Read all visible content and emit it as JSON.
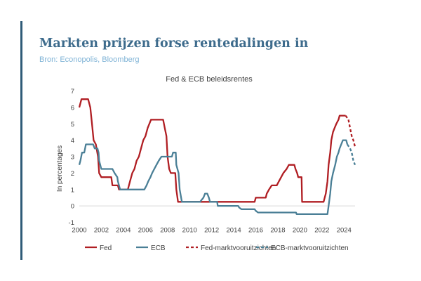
{
  "header": {
    "title": "Markten prijzen forse rentedalingen in",
    "source": "Bron: Econopolis, Bloomberg"
  },
  "colors": {
    "accent_bar": "#2f5b78",
    "title": "#3d6b8c",
    "source": "#7fb3d6",
    "fed": "#b01e23",
    "ecb": "#4a7f96"
  },
  "chart_data": {
    "type": "line",
    "title": "Fed & ECB beleidsrentes",
    "ylabel": "In percentages",
    "xlabel": "",
    "xlim": [
      2000,
      2025
    ],
    "ylim": [
      -1,
      7
    ],
    "xticks": [
      2000,
      2002,
      2004,
      2006,
      2008,
      2010,
      2012,
      2014,
      2016,
      2018,
      2020,
      2022,
      2024
    ],
    "yticks": [
      -1,
      0,
      1,
      2,
      3,
      4,
      5,
      6,
      7
    ],
    "grid": false,
    "legend_position": "bottom",
    "series": [
      {
        "name": "Fed",
        "style": "solid",
        "color": "#b01e23",
        "points": [
          [
            2000.0,
            6.0
          ],
          [
            2000.2,
            6.5
          ],
          [
            2000.8,
            6.5
          ],
          [
            2001.0,
            6.0
          ],
          [
            2001.15,
            5.0
          ],
          [
            2001.3,
            4.0
          ],
          [
            2001.5,
            3.75
          ],
          [
            2001.7,
            3.0
          ],
          [
            2001.8,
            2.0
          ],
          [
            2002.0,
            1.75
          ],
          [
            2002.9,
            1.75
          ],
          [
            2003.0,
            1.25
          ],
          [
            2003.5,
            1.25
          ],
          [
            2003.6,
            1.0
          ],
          [
            2004.4,
            1.0
          ],
          [
            2004.6,
            1.5
          ],
          [
            2004.8,
            2.0
          ],
          [
            2005.0,
            2.25
          ],
          [
            2005.2,
            2.75
          ],
          [
            2005.4,
            3.0
          ],
          [
            2005.6,
            3.5
          ],
          [
            2005.8,
            4.0
          ],
          [
            2006.0,
            4.25
          ],
          [
            2006.2,
            4.75
          ],
          [
            2006.5,
            5.25
          ],
          [
            2007.6,
            5.25
          ],
          [
            2007.75,
            4.75
          ],
          [
            2007.9,
            4.25
          ],
          [
            2008.0,
            3.0
          ],
          [
            2008.15,
            2.25
          ],
          [
            2008.3,
            2.0
          ],
          [
            2008.7,
            2.0
          ],
          [
            2008.8,
            1.0
          ],
          [
            2008.95,
            0.25
          ],
          [
            2015.9,
            0.25
          ],
          [
            2016.0,
            0.5
          ],
          [
            2016.9,
            0.5
          ],
          [
            2017.0,
            0.75
          ],
          [
            2017.2,
            1.0
          ],
          [
            2017.45,
            1.25
          ],
          [
            2017.9,
            1.25
          ],
          [
            2018.1,
            1.5
          ],
          [
            2018.3,
            1.75
          ],
          [
            2018.5,
            2.0
          ],
          [
            2018.8,
            2.25
          ],
          [
            2019.0,
            2.5
          ],
          [
            2019.5,
            2.5
          ],
          [
            2019.6,
            2.25
          ],
          [
            2019.75,
            2.0
          ],
          [
            2019.85,
            1.75
          ],
          [
            2020.15,
            1.75
          ],
          [
            2020.2,
            0.25
          ],
          [
            2022.15,
            0.25
          ],
          [
            2022.35,
            0.75
          ],
          [
            2022.5,
            1.5
          ],
          [
            2022.6,
            2.5
          ],
          [
            2022.75,
            3.25
          ],
          [
            2022.85,
            4.0
          ],
          [
            2023.0,
            4.5
          ],
          [
            2023.15,
            4.75
          ],
          [
            2023.3,
            5.0
          ],
          [
            2023.5,
            5.25
          ],
          [
            2023.6,
            5.5
          ],
          [
            2024.15,
            5.5
          ]
        ]
      },
      {
        "name": "ECB",
        "style": "solid",
        "color": "#4a7f96",
        "points": [
          [
            2000.0,
            2.5
          ],
          [
            2000.1,
            2.75
          ],
          [
            2000.25,
            3.25
          ],
          [
            2000.45,
            3.25
          ],
          [
            2000.6,
            3.75
          ],
          [
            2001.25,
            3.75
          ],
          [
            2001.4,
            3.5
          ],
          [
            2001.65,
            3.5
          ],
          [
            2001.75,
            3.25
          ],
          [
            2001.8,
            2.75
          ],
          [
            2002.0,
            2.25
          ],
          [
            2003.0,
            2.25
          ],
          [
            2003.2,
            2.0
          ],
          [
            2003.45,
            1.75
          ],
          [
            2003.5,
            1.5
          ],
          [
            2003.6,
            1.25
          ],
          [
            2003.7,
            1.0
          ],
          [
            2005.9,
            1.0
          ],
          [
            2006.1,
            1.25
          ],
          [
            2006.25,
            1.5
          ],
          [
            2006.45,
            1.75
          ],
          [
            2006.6,
            2.0
          ],
          [
            2006.8,
            2.25
          ],
          [
            2007.0,
            2.5
          ],
          [
            2007.2,
            2.75
          ],
          [
            2007.45,
            3.0
          ],
          [
            2008.4,
            3.0
          ],
          [
            2008.5,
            3.25
          ],
          [
            2008.75,
            3.25
          ],
          [
            2008.8,
            2.5
          ],
          [
            2009.0,
            2.0
          ],
          [
            2009.1,
            1.0
          ],
          [
            2009.3,
            0.25
          ],
          [
            2010.95,
            0.25
          ],
          [
            2011.25,
            0.5
          ],
          [
            2011.4,
            0.75
          ],
          [
            2011.6,
            0.75
          ],
          [
            2011.75,
            0.5
          ],
          [
            2011.85,
            0.25
          ],
          [
            2012.5,
            0.25
          ],
          [
            2012.55,
            0.0
          ],
          [
            2014.4,
            0.0
          ],
          [
            2014.5,
            -0.1
          ],
          [
            2014.7,
            -0.2
          ],
          [
            2015.9,
            -0.2
          ],
          [
            2016.0,
            -0.3
          ],
          [
            2016.2,
            -0.4
          ],
          [
            2019.65,
            -0.4
          ],
          [
            2019.7,
            -0.5
          ],
          [
            2022.5,
            -0.5
          ],
          [
            2022.6,
            0.0
          ],
          [
            2022.75,
            0.75
          ],
          [
            2022.85,
            1.5
          ],
          [
            2023.0,
            2.0
          ],
          [
            2023.2,
            2.5
          ],
          [
            2023.35,
            3.0
          ],
          [
            2023.5,
            3.25
          ],
          [
            2023.6,
            3.5
          ],
          [
            2023.75,
            3.75
          ],
          [
            2023.9,
            4.0
          ],
          [
            2024.2,
            4.0
          ],
          [
            2024.3,
            3.75
          ]
        ]
      },
      {
        "name": "Fed-marktvooruitzichten",
        "style": "dashed",
        "color": "#b01e23",
        "points": [
          [
            2024.15,
            5.5
          ],
          [
            2024.4,
            5.25
          ],
          [
            2024.55,
            4.75
          ],
          [
            2024.7,
            4.25
          ],
          [
            2024.85,
            4.0
          ],
          [
            2025.0,
            3.6
          ]
        ]
      },
      {
        "name": "ECB-marktvooruitzichten",
        "style": "dashed",
        "color": "#4a7f96",
        "points": [
          [
            2024.3,
            3.75
          ],
          [
            2024.55,
            3.5
          ],
          [
            2024.7,
            3.25
          ],
          [
            2024.85,
            2.75
          ],
          [
            2025.0,
            2.5
          ]
        ]
      }
    ]
  }
}
